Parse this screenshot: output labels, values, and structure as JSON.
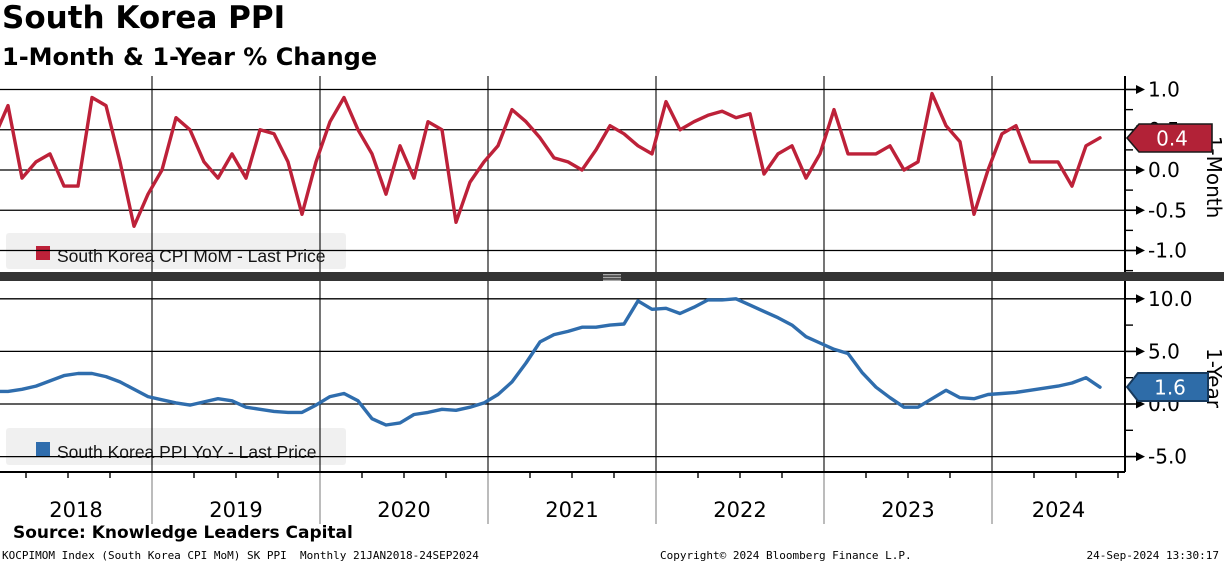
{
  "header": {
    "title": "South Korea PPI",
    "subtitle": "1-Month & 1-Year % Change"
  },
  "chart_data": [
    {
      "type": "line",
      "panel": "top",
      "title": "South Korea CPI MoM - Last Price",
      "axis_label": "1-Month",
      "color": "#bd2139",
      "last_price": 0.4,
      "start": "2018-01",
      "end": "2024-08",
      "frequency": "monthly",
      "ylim": [
        -1.28,
        1.17
      ],
      "yticks": [
        1.0,
        0.5,
        0.0,
        -0.5,
        -1.0
      ],
      "yticks_minor": [
        0.75,
        0.25,
        -0.25,
        -0.75,
        -1.25
      ],
      "grid": true,
      "values": [
        0.4,
        0.8,
        -0.1,
        0.1,
        0.2,
        -0.2,
        -0.2,
        0.9,
        0.8,
        0.1,
        -0.7,
        -0.3,
        0.0,
        0.65,
        0.5,
        0.1,
        -0.1,
        0.2,
        -0.1,
        0.5,
        0.45,
        0.1,
        -0.55,
        0.1,
        0.6,
        0.9,
        0.5,
        0.2,
        -0.3,
        0.3,
        -0.1,
        0.6,
        0.5,
        -0.65,
        -0.15,
        0.1,
        0.3,
        0.75,
        0.6,
        0.4,
        0.15,
        0.1,
        0.0,
        0.25,
        0.55,
        0.45,
        0.3,
        0.2,
        0.85,
        0.5,
        0.6,
        0.68,
        0.73,
        0.65,
        0.7,
        -0.05,
        0.2,
        0.3,
        -0.1,
        0.2,
        0.75,
        0.2,
        0.2,
        0.2,
        0.3,
        0.0,
        0.1,
        0.95,
        0.55,
        0.35,
        -0.55,
        0.0,
        0.45,
        0.55,
        0.1,
        0.1,
        0.1,
        -0.2,
        0.3,
        0.4
      ]
    },
    {
      "type": "line",
      "panel": "bottom",
      "title": "South Korea PPI YoY - Last Price",
      "axis_label": "1-Year",
      "color": "#2f6dad",
      "last_price": 1.6,
      "start": "2018-01",
      "end": "2024-08",
      "frequency": "monthly",
      "ylim": [
        -6.8,
        11.4
      ],
      "yticks": [
        10.0,
        5.0,
        0.0,
        -5.0
      ],
      "yticks_minor": [
        7.5,
        2.5,
        -2.5
      ],
      "grid": true,
      "values": [
        1.2,
        1.2,
        1.4,
        1.7,
        2.2,
        2.7,
        2.9,
        2.9,
        2.6,
        2.1,
        1.4,
        0.7,
        0.4,
        0.1,
        -0.1,
        0.2,
        0.5,
        0.3,
        -0.3,
        -0.5,
        -0.7,
        -0.8,
        -0.8,
        -0.1,
        0.7,
        1.0,
        0.3,
        -1.4,
        -2.0,
        -1.8,
        -1.0,
        -0.8,
        -0.5,
        -0.6,
        -0.3,
        0.1,
        0.9,
        2.1,
        3.9,
        5.9,
        6.6,
        6.9,
        7.3,
        7.3,
        7.5,
        7.6,
        9.8,
        9.0,
        9.1,
        8.6,
        9.2,
        9.9,
        9.9,
        10.0,
        9.4,
        8.8,
        8.2,
        7.5,
        6.4,
        5.8,
        5.2,
        4.8,
        3.0,
        1.6,
        0.6,
        -0.3,
        -0.3,
        0.5,
        1.3,
        0.6,
        0.5,
        0.9,
        1.0,
        1.1,
        1.3,
        1.5,
        1.7,
        2.0,
        2.5,
        1.6
      ]
    }
  ],
  "x_axis": {
    "years": [
      "2018",
      "2019",
      "2020",
      "2021",
      "2022",
      "2023",
      "2024"
    ]
  },
  "legends": [
    {
      "swatch_color": "#bd2139",
      "label": "South Korea CPI MoM - Last Price"
    },
    {
      "swatch_color": "#2f6dad",
      "label": "South Korea PPI YoY - Last Price"
    }
  ],
  "badges": {
    "top": {
      "value": "0.4",
      "bg": "#b22237"
    },
    "bottom": {
      "value": "1.6",
      "bg": "#2e6ca8"
    }
  },
  "footer": {
    "source": "Source: Knowledge Leaders Capital",
    "index_note": "KOCPIMOM Index (South Korea CPI MoM) SK PPI  Monthly 21JAN2018-24SEP2024",
    "copyright": "Copyright© 2024 Bloomberg Finance L.P.",
    "timestamp": "24-Sep-2024 13:30:17"
  }
}
